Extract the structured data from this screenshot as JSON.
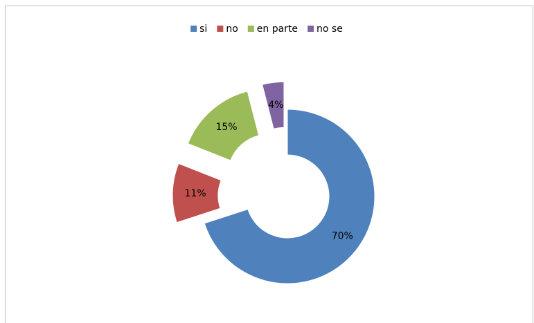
{
  "chart_data": {
    "type": "donut",
    "categories": [
      "si",
      "no",
      "en parte",
      "no se"
    ],
    "values": [
      70,
      11,
      15,
      4
    ],
    "value_labels": [
      "70%",
      "11%",
      "15%",
      "4%"
    ],
    "colors": [
      "#4f81bd",
      "#c0504d",
      "#9bbb59",
      "#8064a2"
    ],
    "legend": "top"
  }
}
